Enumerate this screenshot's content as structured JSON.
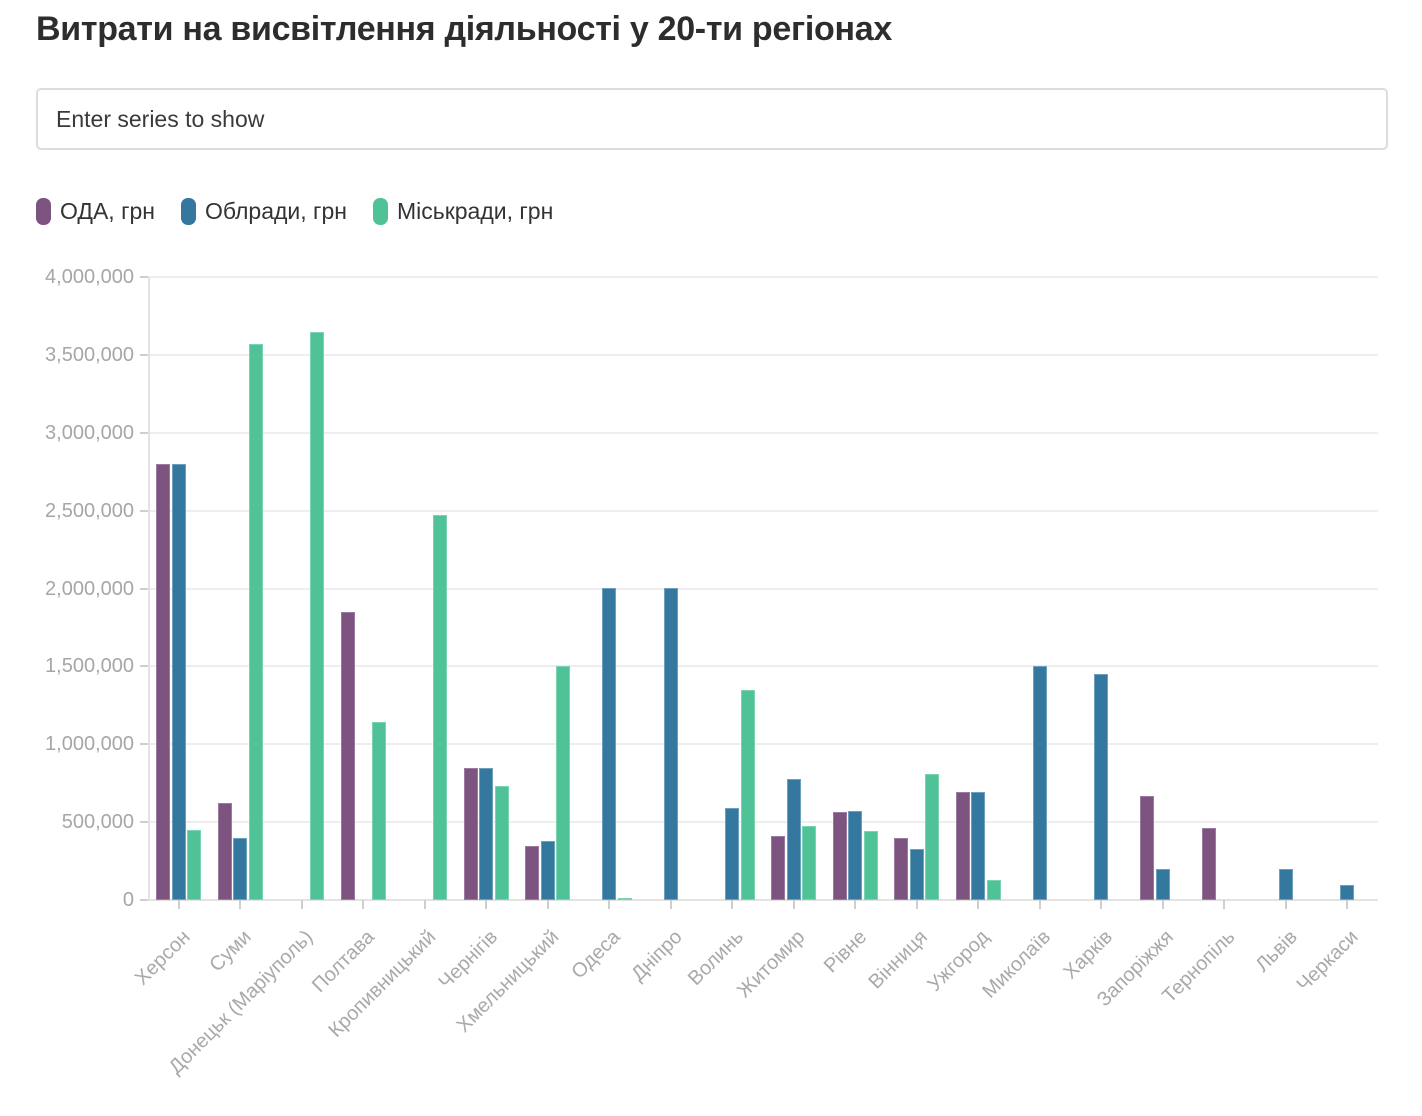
{
  "page": {
    "title": "Витрати на висвітлення діяльності у 20-ти регіонах"
  },
  "search": {
    "placeholder": "Enter series to show"
  },
  "chart_data": {
    "type": "bar",
    "title": "Витрати на висвітлення діяльності у 20-ти регіонах",
    "categories": [
      "Херсон",
      "Суми",
      "Донецьк (Маріуполь)",
      "Полтава",
      "Кропивницький",
      "Чернігів",
      "Хмельницький",
      "Одеса",
      "Дніпро",
      "Волинь",
      "Житомир",
      "Рівне",
      "Вінниця",
      "Ужгород",
      "Миколаїв",
      "Харків",
      "Запоріжжя",
      "Тернопіль",
      "Львів",
      "Черкаси"
    ],
    "series": [
      {
        "name": "ОДА, грн",
        "color": "#7d5480",
        "edge": "#9a7aa0",
        "values": [
          2800000,
          625000,
          null,
          1850000,
          null,
          845000,
          345000,
          null,
          null,
          null,
          410000,
          565000,
          395000,
          695000,
          null,
          null,
          670000,
          460000,
          null,
          null
        ]
      },
      {
        "name": "Облради, грн",
        "color": "#34779f",
        "edge": "#6d9fbe",
        "values": [
          2800000,
          400000,
          null,
          null,
          null,
          845000,
          380000,
          2000000,
          2000000,
          590000,
          775000,
          570000,
          325000,
          695000,
          1500000,
          1450000,
          200000,
          null,
          200000,
          95000
        ]
      },
      {
        "name": "Міськради, грн",
        "color": "#4fc397",
        "edge": "#7bd3b0",
        "values": [
          450000,
          3570000,
          3650000,
          1140000,
          2470000,
          730000,
          1500000,
          15000,
          null,
          1350000,
          475000,
          440000,
          810000,
          130000,
          null,
          null,
          null,
          null,
          null,
          null
        ]
      }
    ],
    "ylim": [
      0,
      4000000
    ],
    "ytick_step": 500000,
    "grid": true,
    "legend_position": "top-left",
    "axis_label_color": "#a9a9a9"
  }
}
